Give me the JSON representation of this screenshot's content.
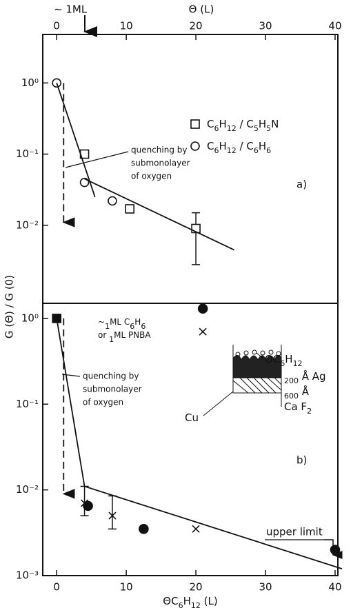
{
  "chart_data": [
    {
      "type": "scatter",
      "panel_label": "a)",
      "top_axis_label": "Θ (L)",
      "top_marker_label": "~ 1ML",
      "ylabel": "G (Θ) / G (0)",
      "log_y": true,
      "xlim": [
        -2,
        40.4
      ],
      "ylim": [
        0.0008,
        4.8
      ],
      "xticks": [
        0,
        10,
        20,
        30,
        40
      ],
      "yticks": [
        {
          "value": 1,
          "label": "10⁰"
        },
        {
          "value": 0.1,
          "label": "10⁻¹"
        },
        {
          "value": 0.01,
          "label": "10⁻²"
        }
      ],
      "annotation": [
        "quenching by",
        "submonolayer",
        "of oxygen"
      ],
      "series": [
        {
          "name": "C6H12 / C5H5N",
          "marker": "square",
          "x": [
            4,
            10.5,
            20
          ],
          "y": [
            0.1,
            0.017,
            0.009
          ],
          "err_low": [
            null,
            null,
            0.0028
          ],
          "err_high": [
            null,
            null,
            0.015
          ]
        },
        {
          "name": "C6H12 / C6H6",
          "marker": "circle",
          "x": [
            0,
            4,
            8
          ],
          "y": [
            1,
            0.04,
            0.022
          ]
        },
        {
          "marker": "line",
          "x": [
            0,
            5.5
          ],
          "y": [
            1,
            0.025
          ]
        },
        {
          "marker": "line",
          "x": [
            4,
            25.5
          ],
          "y": [
            0.045,
            0.0045
          ]
        },
        {
          "marker": "dashed-arrow",
          "x": [
            1,
            1
          ],
          "y": [
            1,
            0.011
          ]
        }
      ]
    },
    {
      "type": "scatter",
      "panel_label": "b)",
      "xlabel": "ΘC6H12 (L)",
      "log_y": true,
      "xlim": [
        -2,
        40.4
      ],
      "ylim": [
        0.001,
        1.5
      ],
      "xticks": [
        0,
        10,
        20,
        30,
        40
      ],
      "yticks": [
        {
          "value": 1,
          "label": "10⁰"
        },
        {
          "value": 0.1,
          "label": "10⁻¹"
        },
        {
          "value": 0.01,
          "label": "10⁻²"
        },
        {
          "value": 0.001,
          "label": "10⁻³"
        }
      ],
      "annotation": [
        "quenching by",
        "submonolayer",
        "of oxygen"
      ],
      "legend_note": [
        "~1ML C6H6",
        "or 1ML PNBA"
      ],
      "upper_limit_label": "upper limit",
      "inset_labels": [
        "ΘC6H12",
        "200 Å Ag",
        "600 Å",
        "Ca F2",
        "Cu"
      ],
      "series": [
        {
          "marker": "filled-circle",
          "x": [
            21,
            4.5,
            12.5,
            40
          ],
          "y": [
            1.3,
            0.0065,
            0.0035,
            0.002
          ]
        },
        {
          "marker": "cross",
          "x": [
            21,
            4,
            8,
            20
          ],
          "y": [
            0.7,
            0.007,
            0.005,
            0.0035
          ],
          "err_low": [
            null,
            0.005,
            0.0035,
            null
          ],
          "err_high": [
            null,
            0.011,
            0.0085,
            null
          ]
        },
        {
          "marker": "filled-square",
          "x": [
            0
          ],
          "y": [
            1
          ]
        },
        {
          "marker": "line",
          "x": [
            0,
            4,
            41
          ],
          "y": [
            1,
            0.011,
            0.0012
          ]
        },
        {
          "marker": "dashed-arrow",
          "x": [
            1,
            1
          ],
          "y": [
            1,
            0.009
          ]
        }
      ]
    }
  ]
}
